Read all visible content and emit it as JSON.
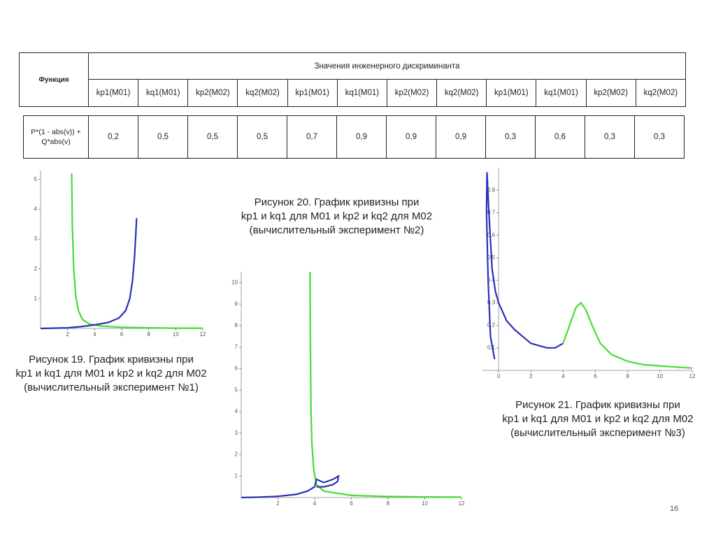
{
  "table": {
    "row_header": "Функция",
    "group_header": "Значения инженерного дискриминанта",
    "columns": [
      "kp1(M01)",
      "kq1(M01)",
      "kp2(M02)",
      "kq2(M02)",
      "kp1(M01)",
      "kq1(M01)",
      "kp2(M02)",
      "kq2(M02)",
      "kp1(M01)",
      "kq1(M01)",
      "kp2(M02)",
      "kq2(M02)"
    ],
    "function_label": "P*(1 - abs(v)) + Q*abs(v)",
    "values": [
      "0,2",
      "0,5",
      "0,5",
      "0,5",
      "0,7",
      "0,9",
      "0,9",
      "0,9",
      "0,3",
      "0,6",
      "0,3",
      "0,3"
    ]
  },
  "figures": [
    {
      "caption": [
        "Рисунок 19. График кривизны при",
        "kp1 и kq1 для M01 и kp2 и kq2 для M02",
        "(вычислительный эксперимент №1)"
      ],
      "xlim": [
        0,
        12
      ],
      "ylim": [
        0,
        5.3
      ],
      "xticks": [
        2,
        4,
        6,
        8,
        10,
        12
      ],
      "yticks": [
        1,
        2,
        3,
        4,
        5
      ],
      "series": [
        {
          "color": "#44dd33",
          "x": [
            2.3,
            2.35,
            2.45,
            2.6,
            2.8,
            3.1,
            3.6,
            4.5,
            6,
            8,
            10,
            12
          ],
          "y": [
            5.2,
            3.5,
            2,
            1.1,
            0.6,
            0.3,
            0.15,
            0.08,
            0.04,
            0.02,
            0.01,
            0.01
          ]
        },
        {
          "color": "#2a2fb8",
          "x": [
            0,
            2,
            3,
            4,
            5,
            5.8,
            6.3,
            6.6,
            6.8,
            6.95,
            7.05,
            7.1
          ],
          "y": [
            0,
            0.02,
            0.06,
            0.12,
            0.2,
            0.35,
            0.6,
            1,
            1.6,
            2.4,
            3.2,
            3.7
          ]
        }
      ]
    },
    {
      "caption": [
        "Рисунок 20. График кривизны при",
        "kp1 и kq1 для M01 и kp2 и kq2 для M02",
        "(вычислительный эксперимент №2)"
      ],
      "xlim": [
        0,
        12
      ],
      "ylim": [
        0,
        10.5
      ],
      "xticks": [
        2,
        4,
        6,
        8,
        10,
        12
      ],
      "yticks": [
        1,
        2,
        3,
        4,
        5,
        6,
        7,
        8,
        9,
        10
      ],
      "series": [
        {
          "color": "#44dd33",
          "x": [
            3.75,
            3.76,
            3.78,
            3.8,
            3.85,
            3.95,
            4.1,
            4.5,
            6,
            8,
            10,
            12
          ],
          "y": [
            10.5,
            8,
            6,
            4,
            2.5,
            1.3,
            0.6,
            0.3,
            0.1,
            0.05,
            0.03,
            0.02
          ]
        },
        {
          "color": "#2a2fb8",
          "x": [
            0,
            1,
            2,
            3,
            3.6,
            4,
            4.1,
            4.5,
            5,
            5.3,
            5.25,
            5,
            4.5,
            4.1
          ],
          "y": [
            0,
            0.02,
            0.06,
            0.15,
            0.3,
            0.5,
            0.85,
            0.7,
            0.85,
            1,
            0.75,
            0.6,
            0.5,
            0.5
          ]
        }
      ]
    },
    {
      "caption": [
        "Рисунок 21. График кривизны при",
        "kp1 и kq1 для M01 и kp2 и kq2 для M02",
        "(вычислительный эксперимент №3)"
      ],
      "xlim": [
        -1,
        12
      ],
      "ylim": [
        0,
        0.9
      ],
      "xticks": [
        0,
        2,
        4,
        6,
        8,
        10,
        12
      ],
      "yticks": [
        0.1,
        0.2,
        0.3,
        0.4,
        0.5,
        0.6,
        0.7,
        0.8
      ],
      "series": [
        {
          "color": "#2a2fb8",
          "x": [
            -0.25,
            -0.5,
            -0.65,
            -0.75,
            -0.72,
            -0.6,
            -0.4,
            -0.2,
            0,
            0.5,
            1,
            2,
            3,
            3.5,
            4
          ],
          "y": [
            0.05,
            0.15,
            0.4,
            0.7,
            0.88,
            0.7,
            0.45,
            0.35,
            0.3,
            0.22,
            0.18,
            0.12,
            0.1,
            0.1,
            0.12
          ]
        },
        {
          "color": "#44dd33",
          "x": [
            4,
            4.5,
            4.8,
            5.1,
            5.4,
            5.8,
            6.3,
            7,
            8,
            9,
            10,
            11,
            12
          ],
          "y": [
            0.12,
            0.22,
            0.28,
            0.3,
            0.27,
            0.2,
            0.12,
            0.07,
            0.04,
            0.025,
            0.02,
            0.015,
            0.01
          ]
        }
      ]
    }
  ],
  "page_number": "16"
}
